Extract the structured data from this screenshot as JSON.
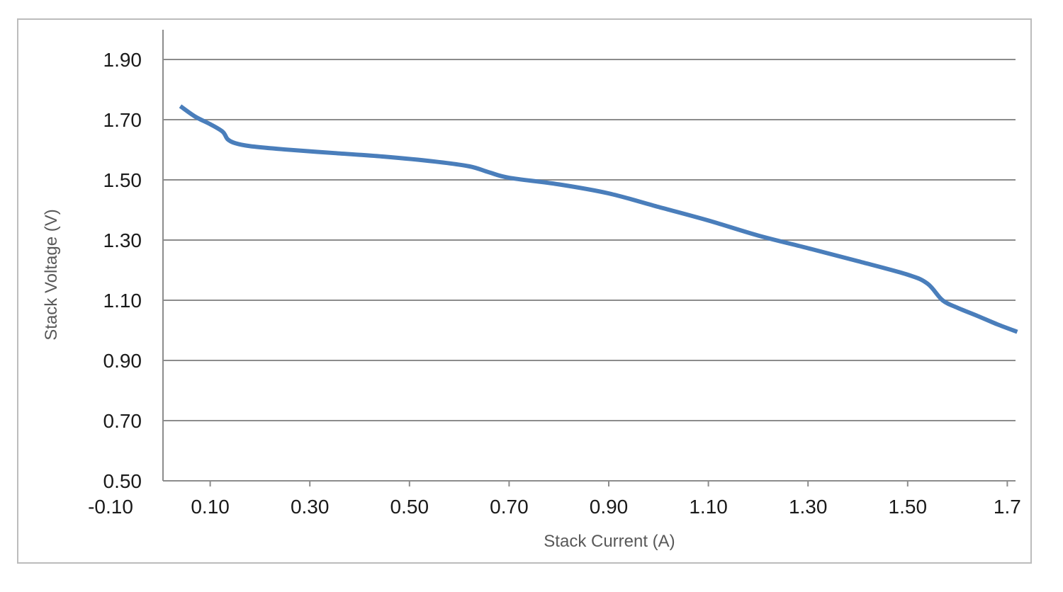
{
  "chart_data": {
    "type": "line",
    "title": "",
    "xlabel": "Stack Current (A)",
    "ylabel": "Stack Voltage (V)",
    "xlim": [
      -0.1,
      1.72
    ],
    "ylim": [
      0.5,
      1.9
    ],
    "x_ticks": [
      "-0.10",
      "0.10",
      "0.30",
      "0.50",
      "0.70",
      "0.90",
      "1.10",
      "1.30",
      "1.50",
      "1.7"
    ],
    "x_tick_values": [
      -0.1,
      0.1,
      0.3,
      0.5,
      0.7,
      0.9,
      1.1,
      1.3,
      1.5,
      1.7
    ],
    "y_ticks": [
      "0.50",
      "0.70",
      "0.90",
      "1.10",
      "1.30",
      "1.50",
      "1.70",
      "1.90"
    ],
    "y_tick_values": [
      0.5,
      0.7,
      0.9,
      1.1,
      1.3,
      1.5,
      1.7,
      1.9
    ],
    "grid": "horizontal",
    "legend": "none",
    "series": [
      {
        "color": "#4a7ebb",
        "points": [
          [
            0.04,
            1.745
          ],
          [
            0.07,
            1.71
          ],
          [
            0.1,
            1.685
          ],
          [
            0.125,
            1.66
          ],
          [
            0.135,
            1.635
          ],
          [
            0.15,
            1.622
          ],
          [
            0.18,
            1.612
          ],
          [
            0.25,
            1.601
          ],
          [
            0.35,
            1.589
          ],
          [
            0.45,
            1.577
          ],
          [
            0.55,
            1.561
          ],
          [
            0.62,
            1.545
          ],
          [
            0.66,
            1.525
          ],
          [
            0.7,
            1.507
          ],
          [
            0.8,
            1.485
          ],
          [
            0.9,
            1.455
          ],
          [
            1.0,
            1.41
          ],
          [
            1.1,
            1.365
          ],
          [
            1.2,
            1.315
          ],
          [
            1.3,
            1.273
          ],
          [
            1.4,
            1.23
          ],
          [
            1.5,
            1.185
          ],
          [
            1.54,
            1.155
          ],
          [
            1.57,
            1.1
          ],
          [
            1.6,
            1.075
          ],
          [
            1.64,
            1.048
          ],
          [
            1.68,
            1.02
          ],
          [
            1.72,
            0.995
          ]
        ]
      }
    ]
  }
}
